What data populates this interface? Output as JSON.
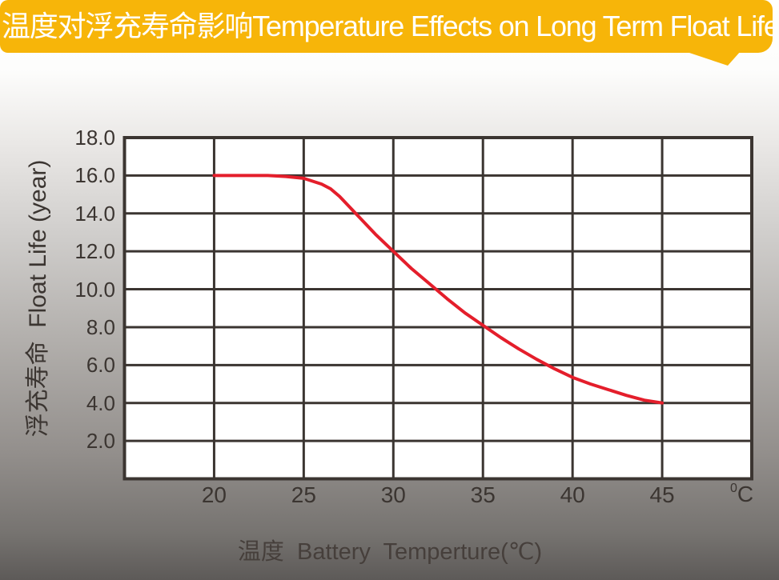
{
  "title_banner": {
    "text": "温度对浮充寿命影响Temperature Effects on Long Term Float Life",
    "bg_color": "#F7B509",
    "text_color": "#FFFFFF"
  },
  "colors": {
    "banner_amber": "#F7B509",
    "grid_line": "#3B3531",
    "curve_red": "#E41E2B",
    "plot_background": "#FFFFFF",
    "tick_text": "#3B3531"
  },
  "chart_data": {
    "type": "line",
    "title": "温度对浮充寿命影响Temperature Effects on Long Term Float Life",
    "xlabel": "温度  Battery  Temperture(℃)",
    "ylabel": "浮充寿命  Float Life (year)",
    "x_unit": {
      "sup": "0",
      "base": "C"
    },
    "xlim": [
      15,
      50
    ],
    "ylim": [
      0,
      18
    ],
    "grid": true,
    "legend": "none",
    "x_ticks": [
      {
        "v": 20,
        "label": "20"
      },
      {
        "v": 25,
        "label": "25"
      },
      {
        "v": 30,
        "label": "30"
      },
      {
        "v": 35,
        "label": "35"
      },
      {
        "v": 40,
        "label": "40"
      },
      {
        "v": 45,
        "label": "45"
      }
    ],
    "y_ticks": [
      {
        "v": 18,
        "label": "18.0"
      },
      {
        "v": 16,
        "label": "16.0"
      },
      {
        "v": 14,
        "label": "14.0"
      },
      {
        "v": 12,
        "label": "12.0"
      },
      {
        "v": 10,
        "label": "10.0"
      },
      {
        "v": 8,
        "label": "8.0"
      },
      {
        "v": 6,
        "label": "6.0"
      },
      {
        "v": 4,
        "label": "4.0"
      },
      {
        "v": 2,
        "label": "2.0"
      }
    ],
    "series": [
      {
        "name": "float-life-vs-temperature",
        "color": "#E41E2B",
        "points": [
          [
            20,
            16.0
          ],
          [
            21,
            16.0
          ],
          [
            22,
            16.0
          ],
          [
            23,
            16.0
          ],
          [
            24,
            15.95
          ],
          [
            25,
            15.85
          ],
          [
            26,
            15.55
          ],
          [
            26.5,
            15.3
          ],
          [
            27,
            14.9
          ],
          [
            28,
            13.9
          ],
          [
            29,
            12.9
          ],
          [
            30,
            12.0
          ],
          [
            31,
            11.1
          ],
          [
            32,
            10.3
          ],
          [
            33,
            9.5
          ],
          [
            34,
            8.75
          ],
          [
            35,
            8.1
          ],
          [
            36,
            7.45
          ],
          [
            37,
            6.85
          ],
          [
            38,
            6.3
          ],
          [
            39,
            5.8
          ],
          [
            40,
            5.35
          ],
          [
            41,
            5.0
          ],
          [
            42,
            4.7
          ],
          [
            43,
            4.4
          ],
          [
            44,
            4.15
          ],
          [
            45,
            4.0
          ]
        ]
      }
    ]
  }
}
